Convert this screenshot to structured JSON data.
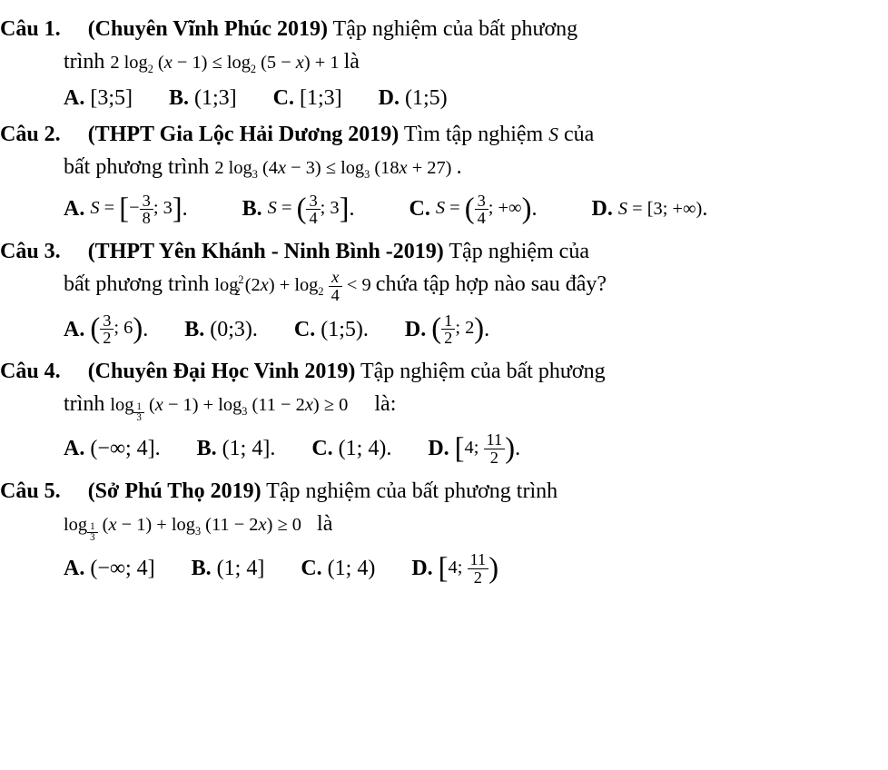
{
  "q1": {
    "label": "Câu 1.",
    "source": "(Chuyên Vĩnh Phúc 2019)",
    "lead1": "Tập nghiệm của bất phương",
    "lead2_pre": "trình",
    "formula": "2 log₂ (x − 1) ≤ log₂ (5 − x) + 1",
    "lead2_post": "là",
    "A": {
      "label": "A.",
      "val": "[3;5]"
    },
    "B": {
      "label": "B.",
      "val": "(1;3]"
    },
    "C": {
      "label": "C.",
      "val": "[1;3]"
    },
    "D": {
      "label": "D.",
      "val": "(1;5)"
    }
  },
  "q2": {
    "label": "Câu 2.",
    "source": "(THPT Gia Lộc Hải Dương 2019)",
    "lead1_a": "Tìm tập nghiệm",
    "lead1_s": "S",
    "lead1_b": "của",
    "lead2_pre": "bất phương trình",
    "formula": "2 log₃ (4x − 3) ≤ log₃ (18x + 27)",
    "A": {
      "label": "A."
    },
    "B": {
      "label": "B."
    },
    "C": {
      "label": "C."
    },
    "D": {
      "label": "D.",
      "val": "S = [3; +∞)"
    }
  },
  "q3": {
    "label": "Câu 3.",
    "source": "(THPT Yên Khánh - Ninh Bình -2019)",
    "lead1": "Tập nghiệm của",
    "lead2_pre": "bất phương trình",
    "lead2_post": "chứa tập hợp nào sau đây?",
    "A": {
      "label": "A."
    },
    "B": {
      "label": "B.",
      "val": "(0;3)"
    },
    "C": {
      "label": "C.",
      "val": "(1;5)"
    },
    "D": {
      "label": "D."
    }
  },
  "q4": {
    "label": "Câu 4.",
    "source": "(Chuyên Đại Học Vinh 2019)",
    "lead1": "Tập nghiệm của bất phương",
    "lead2_pre": "trình",
    "lead2_post": "là:",
    "A": {
      "label": "A.",
      "val": "(−∞; 4]"
    },
    "B": {
      "label": "B.",
      "val": "(1; 4]"
    },
    "C": {
      "label": "C.",
      "val": "(1; 4)"
    },
    "D": {
      "label": "D."
    }
  },
  "q5": {
    "label": "Câu 5.",
    "source": "(Sở Phú Thọ 2019)",
    "lead1": "Tập nghiệm của bất phương trình",
    "lead2_post": "là",
    "A": {
      "label": "A.",
      "val": "(−∞; 4]"
    },
    "B": {
      "label": "B.",
      "val": "(1; 4]"
    },
    "C": {
      "label": "C.",
      "val": "(1; 4)"
    },
    "D": {
      "label": "D."
    }
  },
  "math": {
    "S_eq": "S =",
    "period": ".",
    "log": "log",
    "lt9": "< 9",
    "ge0": "≥ 0",
    "plus": "+",
    "two": "2",
    "three": "3",
    "four": "4",
    "eight": "8",
    "eleven": "11",
    "x4": "x/4",
    "paren_2x": "(2x)",
    "paren_x_minus_1": "(x − 1)",
    "paren_11_2x": "(11 − 2x)"
  }
}
